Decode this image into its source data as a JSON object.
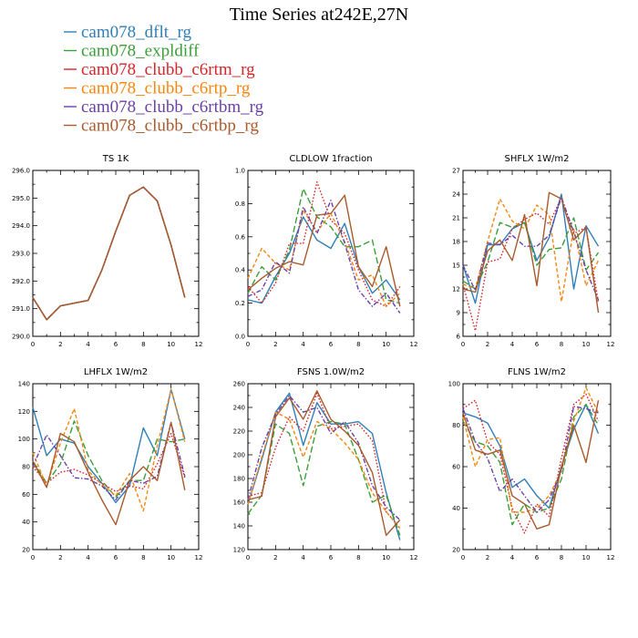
{
  "figure": {
    "title": "Time Series at242E,27N"
  },
  "legend": [
    {
      "name": "cam078_dflt_rg",
      "color": "#2f7fb8",
      "dash": "solid"
    },
    {
      "name": "cam078_expldiff",
      "color": "#3a9e3a",
      "dash": "long-dash"
    },
    {
      "name": "cam078_clubb_c6rtm_rg",
      "color": "#d7262b",
      "dash": "dot"
    },
    {
      "name": "cam078_clubb_c6rtp_rg",
      "color": "#f5860f",
      "dash": "dash"
    },
    {
      "name": "cam078_clubb_c6rtbm_rg",
      "color": "#6a40a8",
      "dash": "dash-dot"
    },
    {
      "name": "cam078_clubb_c6rtbp_rg",
      "color": "#a85a2c",
      "dash": "solid"
    }
  ],
  "chart_data": [
    {
      "type": "line",
      "title": "TS   1K",
      "x": [
        0,
        1,
        2,
        3,
        4,
        5,
        6,
        7,
        8,
        9,
        10,
        11
      ],
      "xlim": [
        0,
        12
      ],
      "xticks": [
        "0",
        "2",
        "4",
        "6",
        "8",
        "10",
        "12"
      ],
      "ylim": [
        290,
        296
      ],
      "yticks": [
        "290.0",
        "291.0",
        "292.0",
        "293.0",
        "294.0",
        "295.0",
        "296.0"
      ],
      "series": [
        {
          "values": [
            291.4,
            290.6,
            291.1,
            291.2,
            291.3,
            292.4,
            293.8,
            295.1,
            295.4,
            294.9,
            293.3,
            291.4
          ]
        },
        {
          "values": [
            291.4,
            290.6,
            291.1,
            291.2,
            291.3,
            292.4,
            293.8,
            295.1,
            295.4,
            294.9,
            293.3,
            291.4
          ]
        },
        {
          "values": [
            291.4,
            290.6,
            291.1,
            291.2,
            291.3,
            292.4,
            293.8,
            295.1,
            295.4,
            294.9,
            293.3,
            291.4
          ]
        },
        {
          "values": [
            291.4,
            290.6,
            291.1,
            291.2,
            291.3,
            292.4,
            293.8,
            295.1,
            295.4,
            294.9,
            293.3,
            291.4
          ]
        },
        {
          "values": [
            291.4,
            290.6,
            291.1,
            291.2,
            291.3,
            292.4,
            293.8,
            295.1,
            295.4,
            294.9,
            293.3,
            291.4
          ]
        },
        {
          "values": [
            291.4,
            290.6,
            291.1,
            291.2,
            291.3,
            292.4,
            293.8,
            295.1,
            295.4,
            294.9,
            293.3,
            291.4
          ]
        }
      ]
    },
    {
      "type": "line",
      "title": "CLDLOW   1fraction",
      "x": [
        0,
        1,
        2,
        3,
        4,
        5,
        6,
        7,
        8,
        9,
        10,
        11
      ],
      "xlim": [
        0,
        12
      ],
      "xticks": [
        "0",
        "2",
        "4",
        "6",
        "8",
        "10",
        "12"
      ],
      "ylim": [
        0,
        1
      ],
      "yticks": [
        "0.0",
        "0.2",
        "0.4",
        "0.6",
        "0.8",
        "1.0"
      ],
      "series": [
        {
          "values": [
            0.22,
            0.2,
            0.36,
            0.5,
            0.72,
            0.58,
            0.53,
            0.68,
            0.42,
            0.26,
            0.34,
            0.22
          ]
        },
        {
          "values": [
            0.26,
            0.42,
            0.34,
            0.52,
            0.89,
            0.72,
            0.66,
            0.54,
            0.54,
            0.58,
            0.22,
            0.2
          ]
        },
        {
          "values": [
            0.3,
            0.2,
            0.32,
            0.56,
            0.56,
            0.93,
            0.7,
            0.62,
            0.4,
            0.22,
            0.18,
            0.3
          ]
        },
        {
          "values": [
            0.35,
            0.53,
            0.44,
            0.4,
            0.76,
            0.63,
            0.74,
            0.57,
            0.34,
            0.37,
            0.18,
            0.26
          ]
        },
        {
          "values": [
            0.24,
            0.28,
            0.45,
            0.38,
            0.78,
            0.62,
            0.82,
            0.56,
            0.28,
            0.18,
            0.26,
            0.14
          ]
        },
        {
          "values": [
            0.28,
            0.35,
            0.41,
            0.45,
            0.43,
            0.73,
            0.74,
            0.85,
            0.42,
            0.3,
            0.54,
            0.18
          ]
        }
      ]
    },
    {
      "type": "line",
      "title": "SHFLX   1W/m2",
      "x": [
        0,
        1,
        2,
        3,
        4,
        5,
        6,
        7,
        8,
        9,
        10,
        11
      ],
      "xlim": [
        0,
        12
      ],
      "xticks": [
        "0",
        "2",
        "4",
        "6",
        "8",
        "10",
        "12"
      ],
      "ylim": [
        6,
        27
      ],
      "yticks": [
        "6",
        "9",
        "12",
        "15",
        "18",
        "21",
        "24",
        "27"
      ],
      "series": [
        {
          "values": [
            15,
            10.2,
            17.6,
            17.6,
            19.6,
            20.4,
            15.6,
            18.5,
            24,
            12,
            20,
            17.4
          ]
        },
        {
          "values": [
            13,
            12,
            15.4,
            20.4,
            19.8,
            20.4,
            15,
            17,
            17.2,
            21,
            14.4,
            16.6
          ]
        },
        {
          "values": [
            12.6,
            6.7,
            15.4,
            15.8,
            19.6,
            20.8,
            21.6,
            20.2,
            23.6,
            19,
            19.8,
            10.3
          ]
        },
        {
          "values": [
            12.6,
            12,
            18,
            23.4,
            20.6,
            19.6,
            22.6,
            21.4,
            10.4,
            19.6,
            12.4,
            15.6
          ]
        },
        {
          "values": [
            15,
            11.8,
            17.8,
            17.6,
            18.8,
            17.4,
            17.4,
            18.8,
            23.6,
            19.2,
            14.4,
            10.6
          ]
        },
        {
          "values": [
            12,
            11.6,
            16.8,
            18.2,
            15.6,
            21.4,
            12.4,
            24.2,
            23.4,
            18.2,
            19.8,
            9
          ]
        }
      ]
    },
    {
      "type": "line",
      "title": "LHFLX   1W/m2",
      "x": [
        0,
        1,
        2,
        3,
        4,
        5,
        6,
        7,
        8,
        9,
        10,
        11
      ],
      "xlim": [
        0,
        12
      ],
      "xticks": [
        "0",
        "2",
        "4",
        "6",
        "8",
        "10",
        "12"
      ],
      "ylim": [
        20,
        140
      ],
      "yticks": [
        "20",
        "40",
        "60",
        "80",
        "100",
        "120",
        "140"
      ],
      "series": [
        {
          "values": [
            123,
            88,
            100,
            97,
            80,
            68,
            54,
            66,
            108,
            88,
            136,
            100
          ]
        },
        {
          "values": [
            84,
            68,
            82,
            113,
            88,
            70,
            58,
            70,
            70,
            100,
            98,
            100
          ]
        },
        {
          "values": [
            80,
            68,
            76,
            78,
            74,
            68,
            62,
            66,
            64,
            82,
            104,
            72
          ]
        },
        {
          "values": [
            90,
            66,
            97,
            122,
            77,
            67,
            59,
            75,
            48,
            95,
            136,
            98
          ]
        },
        {
          "values": [
            80,
            103,
            88,
            72,
            71,
            66,
            56,
            70,
            68,
            73,
            112,
            73
          ]
        },
        {
          "values": [
            84,
            65,
            104,
            98,
            76,
            56,
            38,
            70,
            80,
            70,
            112,
            63
          ]
        }
      ]
    },
    {
      "type": "line",
      "title": "FSNS   1.0W/m2",
      "x": [
        0,
        1,
        2,
        3,
        4,
        5,
        6,
        7,
        8,
        9,
        10,
        11
      ],
      "xlim": [
        0,
        12
      ],
      "xticks": [
        "0",
        "2",
        "4",
        "6",
        "8",
        "10",
        "12"
      ],
      "ylim": [
        120,
        260
      ],
      "yticks": [
        "120",
        "140",
        "160",
        "180",
        "200",
        "220",
        "240",
        "260"
      ],
      "series": [
        {
          "values": [
            158,
            196,
            236,
            252,
            208,
            244,
            226,
            226,
            228,
            218,
            168,
            128
          ]
        },
        {
          "values": [
            150,
            166,
            226,
            218,
            174,
            224,
            228,
            226,
            196,
            160,
            166,
            132
          ]
        },
        {
          "values": [
            165,
            168,
            206,
            232,
            220,
            252,
            222,
            224,
            226,
            212,
            152,
            138
          ]
        },
        {
          "values": [
            158,
            198,
            236,
            230,
            198,
            228,
            222,
            210,
            196,
            168,
            152,
            138
          ]
        },
        {
          "values": [
            162,
            206,
            234,
            250,
            236,
            240,
            218,
            228,
            210,
            174,
            156,
            145
          ]
        },
        {
          "values": [
            162,
            165,
            232,
            248,
            230,
            254,
            230,
            220,
            208,
            185,
            132,
            145
          ]
        }
      ]
    },
    {
      "type": "line",
      "title": "FLNS   1W/m2",
      "x": [
        0,
        1,
        2,
        3,
        4,
        5,
        6,
        7,
        8,
        9,
        10,
        11
      ],
      "xlim": [
        0,
        12
      ],
      "xticks": [
        "0",
        "2",
        "4",
        "6",
        "8",
        "10",
        "12"
      ],
      "ylim": [
        20,
        100
      ],
      "yticks": [
        "20",
        "40",
        "60",
        "80",
        "100"
      ],
      "series": [
        {
          "values": [
            86,
            84,
            81,
            70,
            50,
            54,
            46,
            40,
            60,
            78,
            90,
            76
          ]
        },
        {
          "values": [
            82,
            72,
            70,
            62,
            32,
            42,
            38,
            40,
            54,
            84,
            90,
            80
          ]
        },
        {
          "values": [
            88,
            92,
            72,
            66,
            40,
            28,
            42,
            36,
            64,
            90,
            95,
            82
          ]
        },
        {
          "values": [
            84,
            60,
            73,
            74,
            38,
            38,
            40,
            46,
            58,
            82,
            98,
            86
          ]
        },
        {
          "values": [
            88,
            72,
            64,
            48,
            54,
            46,
            38,
            44,
            58,
            89,
            88,
            86
          ]
        },
        {
          "values": [
            86,
            68,
            66,
            68,
            46,
            42,
            30,
            32,
            60,
            80,
            62,
            92
          ]
        }
      ]
    }
  ]
}
